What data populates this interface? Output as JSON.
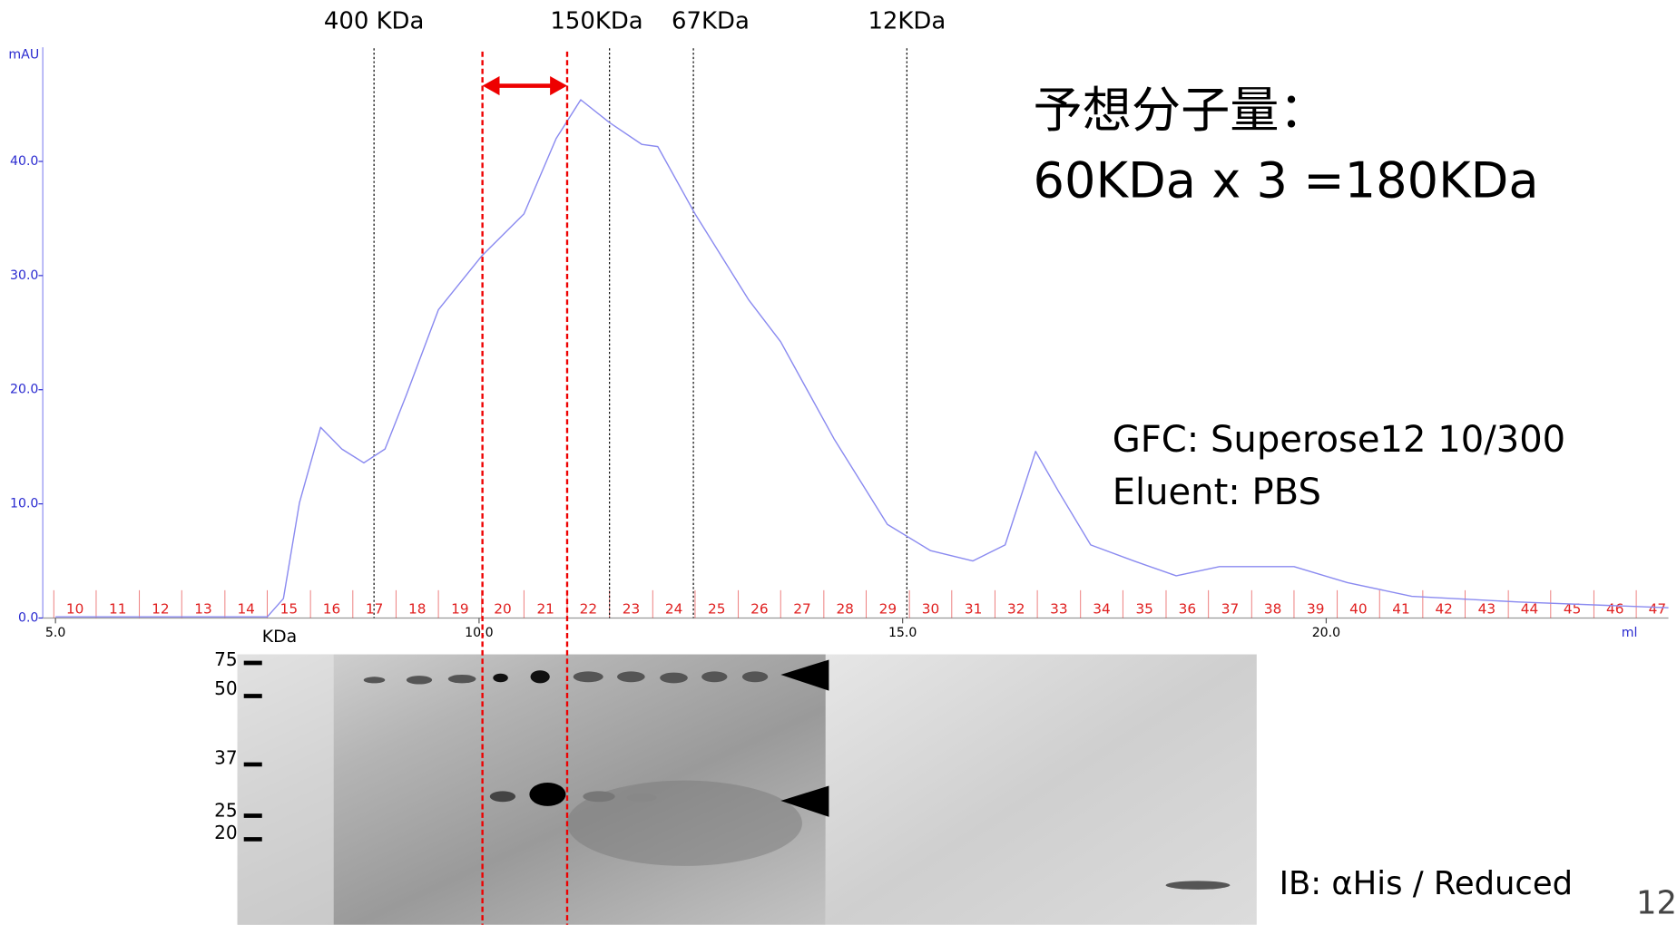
{
  "chart_data": {
    "type": "line",
    "y_unit": "mAU",
    "x_unit": "ml",
    "xlim": [
      4.85,
      24.04
    ],
    "ylim": [
      0,
      50
    ],
    "xticks": [
      {
        "value": 5,
        "label": "5.0"
      },
      {
        "value": 10,
        "label": "10.0"
      },
      {
        "value": 15,
        "label": "15.0"
      },
      {
        "value": 20,
        "label": "20.0"
      }
    ],
    "yticks": [
      {
        "value": 0,
        "label": "0.0"
      },
      {
        "value": 10,
        "label": "10.0"
      },
      {
        "value": 20,
        "label": "20.0"
      },
      {
        "value": 30,
        "label": "30.0"
      },
      {
        "value": 40,
        "label": "40.0"
      }
    ],
    "color": "#8a8af0",
    "x": [
      5.0,
      7.5,
      7.69,
      7.88,
      8.13,
      8.38,
      8.64,
      8.89,
      9.14,
      9.52,
      10.03,
      10.53,
      10.91,
      11.2,
      11.54,
      11.92,
      12.11,
      12.55,
      13.18,
      13.56,
      14.19,
      14.82,
      15.33,
      15.83,
      16.21,
      16.57,
      16.84,
      17.22,
      17.73,
      18.23,
      18.74,
      19.62,
      20.25,
      21.01,
      22.27,
      24.04
    ],
    "values": [
      0.1,
      0.1,
      1.7,
      10.1,
      16.7,
      14.8,
      13.6,
      14.8,
      19.5,
      27,
      31.7,
      35.4,
      42,
      45.4,
      43.4,
      41.5,
      41.3,
      35.4,
      27.9,
      24.2,
      15.7,
      8.2,
      5.9,
      5,
      6.4,
      14.6,
      11.1,
      6.4,
      5,
      3.7,
      4.5,
      4.5,
      3.1,
      1.9,
      1.4,
      0.9
    ],
    "fraction_color": "#e02020",
    "fractions": [
      10,
      11,
      12,
      13,
      14,
      15,
      16,
      17,
      18,
      19,
      20,
      21,
      22,
      23,
      24,
      25,
      26,
      27,
      28,
      29,
      30,
      31,
      32,
      33,
      34,
      35,
      36,
      37,
      38,
      39,
      40,
      41,
      42,
      43,
      44,
      45,
      46,
      47
    ],
    "fraction_edges": [
      4.98,
      5.48,
      5.99,
      6.49,
      7.0,
      7.5,
      8.01,
      8.51,
      9.02,
      9.52,
      10.03,
      10.53,
      11.04,
      11.54,
      12.05,
      12.55,
      13.06,
      13.56,
      14.07,
      14.57,
      15.08,
      15.58,
      16.09,
      16.59,
      17.1,
      17.6,
      18.11,
      18.61,
      19.12,
      19.62,
      20.13,
      20.63,
      21.14,
      21.64,
      22.15,
      22.65,
      23.16,
      23.66
    ],
    "mw_markers": [
      {
        "label": "400 KDa",
        "x": 8.76
      },
      {
        "label": "150KDa",
        "x": 11.54
      },
      {
        "label": "67KDa",
        "x": 12.53
      },
      {
        "label": "12KDa",
        "x": 15.05
      }
    ],
    "selected_range": [
      10.04,
      11.04
    ],
    "annotations": [
      "予想分子量：",
      "60KDa x 3 =180KDa",
      "GFC: Superose12 10/300",
      "Eluent: PBS",
      "IB: αHis / Reduced"
    ],
    "ladder": {
      "unit": "KDa",
      "labels": [
        75,
        50,
        37,
        25,
        20
      ]
    },
    "page_number": "12"
  }
}
